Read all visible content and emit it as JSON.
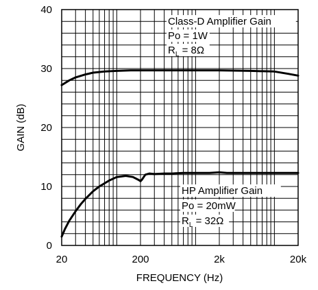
{
  "chart_data": {
    "type": "line",
    "xlabel": "FREQUENCY (Hz)",
    "ylabel": "GAIN (dB)",
    "x_scale": "log",
    "xlim": [
      20,
      20000
    ],
    "ylim": [
      0,
      40
    ],
    "x_ticks": [
      {
        "value": 20,
        "label": "20"
      },
      {
        "value": 200,
        "label": "200"
      },
      {
        "value": 2000,
        "label": "2k"
      },
      {
        "value": 20000,
        "label": "20k"
      }
    ],
    "y_ticks": [
      {
        "value": 0,
        "label": "0"
      },
      {
        "value": 10,
        "label": "10"
      },
      {
        "value": 20,
        "label": "20"
      },
      {
        "value": 30,
        "label": "30"
      },
      {
        "value": 40,
        "label": "40"
      }
    ],
    "grid": true,
    "line_color": "#000000",
    "series": [
      {
        "x": [
          20,
          25,
          30,
          40,
          50,
          70,
          100,
          150,
          200,
          300,
          500,
          1000,
          2000,
          5000,
          10000,
          15000,
          20000
        ],
        "y": [
          27.2,
          28.0,
          28.5,
          29.0,
          29.3,
          29.5,
          29.6,
          29.7,
          29.7,
          29.7,
          29.7,
          29.7,
          29.7,
          29.6,
          29.5,
          29.1,
          28.8
        ]
      },
      {
        "x": [
          20,
          22,
          25,
          30,
          35,
          40,
          50,
          60,
          80,
          100,
          130,
          160,
          190,
          200,
          210,
          230,
          260,
          300,
          400,
          500,
          700,
          1000,
          1500,
          2000,
          2500,
          3000,
          5000,
          10000,
          20000
        ],
        "y": [
          1.5,
          2.8,
          4.2,
          5.8,
          7.0,
          7.9,
          9.2,
          10.0,
          11.0,
          11.6,
          11.8,
          11.6,
          11.1,
          10.9,
          11.2,
          12.0,
          12.2,
          12.1,
          12.2,
          12.2,
          12.3,
          12.3,
          12.3,
          12.4,
          12.3,
          12.3,
          12.3,
          12.3,
          12.3
        ]
      }
    ],
    "annotations": [
      {
        "position": "top-right",
        "lines": [
          {
            "main": "Class-D Amplifier Gain"
          },
          {
            "main": "Po = 1W"
          },
          {
            "main": "R",
            "sub": "L",
            "rest": " = 8Ω"
          }
        ]
      },
      {
        "position": "lower-right",
        "lines": [
          {
            "main": "HP Amplifier Gain"
          },
          {
            "main": "Po = 20mW"
          },
          {
            "main": "R",
            "sub": "L",
            "rest": " = 32Ω"
          }
        ]
      }
    ]
  }
}
